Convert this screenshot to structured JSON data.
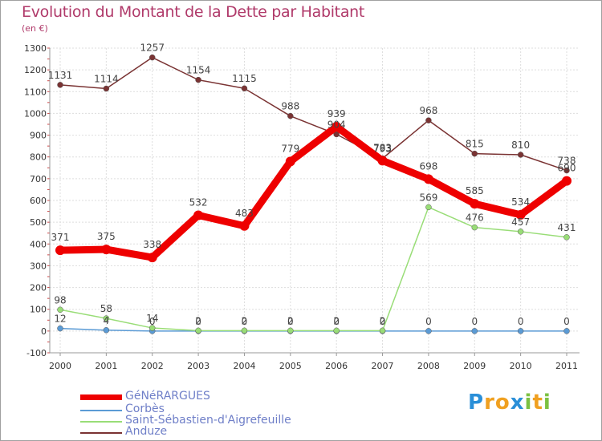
{
  "title": "Evolution du Montant de la Dette par Habitant",
  "unit_label": "(en €)",
  "logo": {
    "text": "Proxiti",
    "letters": [
      {
        "ch": "P",
        "color": "#2a8fd8"
      },
      {
        "ch": "r",
        "color": "#f0a020"
      },
      {
        "ch": "o",
        "color": "#f0a020"
      },
      {
        "ch": "x",
        "color": "#2a8fd8"
      },
      {
        "ch": "i",
        "color": "#7cc142"
      },
      {
        "ch": "t",
        "color": "#f0a020"
      },
      {
        "ch": "i",
        "color": "#7cc142"
      }
    ]
  },
  "chart_data": {
    "type": "line",
    "x": [
      "2000",
      "2001",
      "2002",
      "2003",
      "2004",
      "2005",
      "2006",
      "2007",
      "2008",
      "2009",
      "2010",
      "2011"
    ],
    "ylim": [
      -100,
      1300
    ],
    "yticks": [
      -100,
      0,
      100,
      200,
      300,
      400,
      500,
      600,
      700,
      800,
      900,
      1000,
      1100,
      1200,
      1300
    ],
    "grid": true,
    "legend_position": "bottom-left",
    "series": [
      {
        "name": "GéNéRARGUES",
        "color": "#ee0000",
        "values": [
          371,
          375,
          338,
          532,
          483,
          779,
          939,
          783,
          698,
          585,
          534,
          690
        ],
        "labels": [
          "371",
          "375",
          "338",
          "532",
          "483",
          "779",
          "939",
          "783",
          "698",
          "585",
          "534",
          "690"
        ]
      },
      {
        "name": "Corbès",
        "color": "#5b9bd5",
        "values": [
          12,
          4,
          0,
          0,
          0,
          0,
          0,
          0,
          0,
          0,
          0,
          0
        ],
        "labels": [
          "12",
          "4",
          "0",
          "0",
          "0",
          "0",
          "0",
          "0",
          "0",
          "0",
          "0",
          "0"
        ]
      },
      {
        "name": "Saint-Sébastien-d'Aigrefeuille",
        "color": "#99dd77",
        "values": [
          98,
          58,
          14,
          2,
          2,
          2,
          2,
          2,
          569,
          476,
          457,
          431
        ],
        "labels": [
          "98",
          "58",
          "14",
          "2",
          "2",
          "2",
          "2",
          "2",
          "569",
          "476",
          "457",
          "431"
        ]
      },
      {
        "name": "Anduze",
        "color": "#7a3333",
        "values": [
          1131,
          1114,
          1257,
          1154,
          1115,
          988,
          904,
          793,
          968,
          815,
          810,
          738
        ],
        "labels": [
          "1131",
          "1114",
          "1257",
          "1154",
          "1115",
          "988",
          "904",
          "793",
          "968",
          "815",
          "810",
          "738"
        ]
      }
    ]
  }
}
